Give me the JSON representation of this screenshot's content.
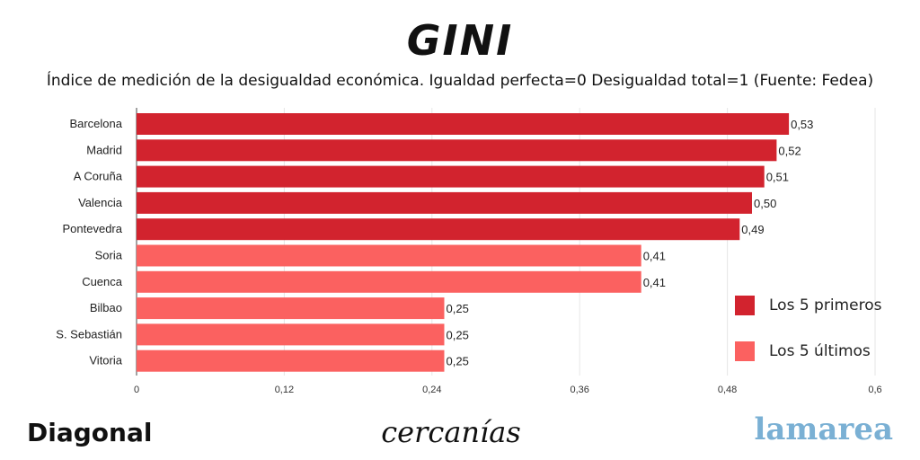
{
  "header": {
    "title": "GINI",
    "subtitle": "Índice de medición de la desigualdad económica. Igualdad perfecta=0 Desigualdad total=1 (Fuente: Fedea)"
  },
  "chart_data": {
    "type": "bar",
    "orientation": "horizontal",
    "categories": [
      "Barcelona",
      "Madrid",
      "A Coruña",
      "Valencia",
      "Pontevedra",
      "Soria",
      "Cuenca",
      "Bilbao",
      "S. Sebastián",
      "Vitoria"
    ],
    "values": [
      0.53,
      0.52,
      0.51,
      0.5,
      0.49,
      0.41,
      0.41,
      0.25,
      0.25,
      0.25
    ],
    "value_labels": [
      "0,53",
      "0,52",
      "0,51",
      "0,50",
      "0,49",
      "0,41",
      "0,41",
      "0,25",
      "0,25",
      "0,25"
    ],
    "groups": [
      "top",
      "top",
      "top",
      "top",
      "top",
      "bottom",
      "bottom",
      "bottom",
      "bottom",
      "bottom"
    ],
    "xlim": [
      0,
      0.6
    ],
    "xticks": [
      0,
      0.12,
      0.24,
      0.36,
      0.48,
      0.6
    ],
    "xtick_labels": [
      "0",
      "0,12",
      "0,24",
      "0,36",
      "0,48",
      "0,6"
    ],
    "grid": true,
    "legend_position": "right",
    "legend": [
      {
        "name": "Los 5 primeros",
        "group": "top",
        "color": "#d2232e"
      },
      {
        "name": "Los 5 últimos",
        "group": "bottom",
        "color": "#fb6160"
      }
    ]
  },
  "footer": {
    "left_brand": "Diagonal",
    "center_brand": "cercanías",
    "right_brand": "lamarea"
  }
}
